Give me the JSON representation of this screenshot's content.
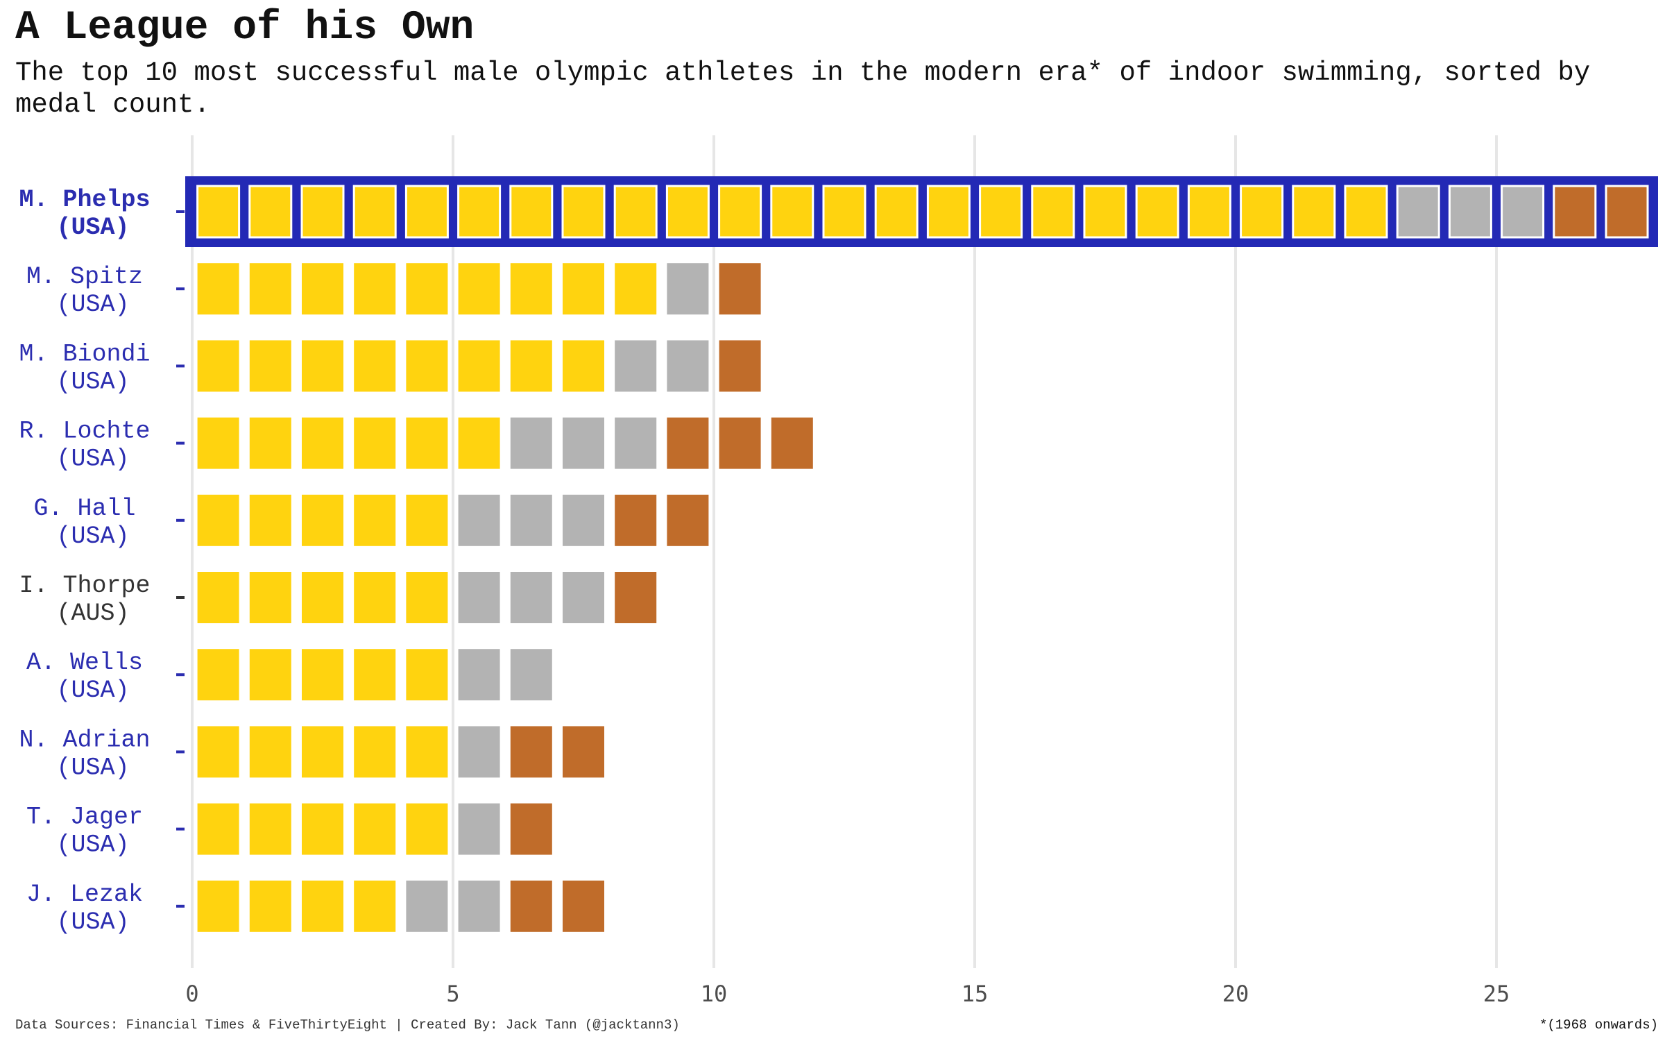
{
  "chart_data": {
    "type": "bar",
    "title": "A League of his Own",
    "subtitle": "The top 10 most successful male olympic athletes in the modern era* of indoor swimming, sorted by medal count.",
    "xlabel": "",
    "ylabel": "",
    "xlim": [
      0,
      28
    ],
    "x_ticks": [
      0,
      5,
      10,
      15,
      20,
      25
    ],
    "grid": "vertical",
    "highlight": "M. Phelps",
    "categories": [
      {
        "name": "M. Phelps",
        "country": "(USA)"
      },
      {
        "name": "M. Spitz",
        "country": "(USA)"
      },
      {
        "name": "M. Biondi",
        "country": "(USA)"
      },
      {
        "name": "R. Lochte",
        "country": "(USA)"
      },
      {
        "name": "G. Hall",
        "country": "(USA)"
      },
      {
        "name": "I. Thorpe",
        "country": "(AUS)"
      },
      {
        "name": "A. Wells",
        "country": "(USA)"
      },
      {
        "name": "N. Adrian",
        "country": "(USA)"
      },
      {
        "name": "T. Jager",
        "country": "(USA)"
      },
      {
        "name": "J. Lezak",
        "country": "(USA)"
      }
    ],
    "series": [
      {
        "medal": "gold",
        "color": "#FFD30F",
        "values": [
          23,
          9,
          8,
          6,
          5,
          5,
          5,
          5,
          5,
          4
        ]
      },
      {
        "medal": "silver",
        "color": "#B3B3B3",
        "values": [
          3,
          1,
          2,
          3,
          3,
          3,
          2,
          1,
          1,
          2
        ]
      },
      {
        "medal": "bronze",
        "color": "#C06C2A",
        "values": [
          2,
          1,
          1,
          3,
          2,
          1,
          0,
          2,
          1,
          2
        ]
      }
    ]
  },
  "colors": {
    "usa_label": "#2B2DB0",
    "other_label": "#333333",
    "highlight_box": "#2329B5",
    "gridline": "#E6E6E6",
    "axis_text": "#4D4D4D"
  },
  "caption_left": "Data Sources: Financial Times & FiveThirtyEight | Created By: Jack Tann (@jacktann3)",
  "caption_right": "*(1968 onwards)"
}
